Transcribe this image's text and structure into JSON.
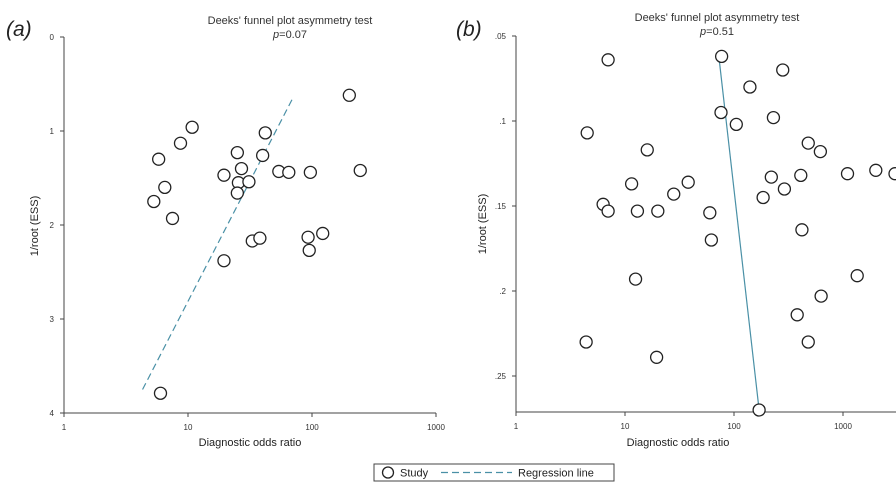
{
  "legend": {
    "study": "Study",
    "regression": "Regression line"
  },
  "chart_data": [
    {
      "type": "scatter",
      "panel": "(a)",
      "title": "Deeks' funnel plot asymmetry test",
      "p_label": "p",
      "p_value": "=0.07",
      "xlabel": "Diagnostic odds ratio",
      "ylabel": "1/root (ESS)",
      "x_scale": "log",
      "y_inverted": true,
      "xlim": [
        1,
        1000
      ],
      "ylim": [
        0,
        4
      ],
      "x_ticks": [
        "1",
        "10",
        "100",
        "1000"
      ],
      "y_ticks": [
        "0",
        "1",
        "2",
        "3",
        "4"
      ],
      "points": [
        {
          "x": 10.8,
          "y": 0.96
        },
        {
          "x": 8.7,
          "y": 1.13
        },
        {
          "x": 5.8,
          "y": 1.3
        },
        {
          "x": 6.5,
          "y": 1.6
        },
        {
          "x": 5.3,
          "y": 1.75
        },
        {
          "x": 7.5,
          "y": 1.93
        },
        {
          "x": 25,
          "y": 1.23
        },
        {
          "x": 19.5,
          "y": 1.47
        },
        {
          "x": 27,
          "y": 1.4
        },
        {
          "x": 25.5,
          "y": 1.55
        },
        {
          "x": 25,
          "y": 1.66
        },
        {
          "x": 31,
          "y": 1.54
        },
        {
          "x": 42,
          "y": 1.02
        },
        {
          "x": 40,
          "y": 1.26
        },
        {
          "x": 54,
          "y": 1.43
        },
        {
          "x": 65,
          "y": 1.44
        },
        {
          "x": 97,
          "y": 1.44
        },
        {
          "x": 33,
          "y": 2.17
        },
        {
          "x": 38,
          "y": 2.14
        },
        {
          "x": 19.5,
          "y": 2.38
        },
        {
          "x": 93,
          "y": 2.13
        },
        {
          "x": 95,
          "y": 2.27
        },
        {
          "x": 122,
          "y": 2.09
        },
        {
          "x": 200,
          "y": 0.62
        },
        {
          "x": 245,
          "y": 1.42
        },
        {
          "x": 6.0,
          "y": 3.79
        }
      ],
      "regression": [
        {
          "x": 4.3,
          "y": 3.75
        },
        {
          "x": 70,
          "y": 0.65
        }
      ]
    },
    {
      "type": "scatter",
      "panel": "(b)",
      "title": "Deeks' funnel plot asymmetry test",
      "p_label": "p",
      "p_value": "=0.51",
      "xlabel": "Diagnostic odds ratio",
      "ylabel": "1/root (ESS)",
      "x_scale": "log",
      "y_inverted": true,
      "xlim": [
        1,
        3000
      ],
      "ylim": [
        0.05,
        0.27
      ],
      "x_ticks": [
        "1",
        "10",
        "100",
        "1000"
      ],
      "y_ticks": [
        ".05",
        ".1",
        ".15",
        ".2",
        ".25"
      ],
      "points": [
        {
          "x": 7.0,
          "y": 0.064
        },
        {
          "x": 4.5,
          "y": 0.107
        },
        {
          "x": 16,
          "y": 0.117
        },
        {
          "x": 6.3,
          "y": 0.149
        },
        {
          "x": 7.0,
          "y": 0.153
        },
        {
          "x": 11.5,
          "y": 0.137
        },
        {
          "x": 13,
          "y": 0.153
        },
        {
          "x": 20,
          "y": 0.153
        },
        {
          "x": 28,
          "y": 0.143
        },
        {
          "x": 38,
          "y": 0.136
        },
        {
          "x": 60,
          "y": 0.154
        },
        {
          "x": 62,
          "y": 0.17
        },
        {
          "x": 12.5,
          "y": 0.193
        },
        {
          "x": 4.4,
          "y": 0.23
        },
        {
          "x": 19.5,
          "y": 0.239
        },
        {
          "x": 77,
          "y": 0.062
        },
        {
          "x": 76,
          "y": 0.095
        },
        {
          "x": 105,
          "y": 0.102
        },
        {
          "x": 140,
          "y": 0.08
        },
        {
          "x": 280,
          "y": 0.07
        },
        {
          "x": 230,
          "y": 0.098
        },
        {
          "x": 220,
          "y": 0.133
        },
        {
          "x": 290,
          "y": 0.14
        },
        {
          "x": 185,
          "y": 0.145
        },
        {
          "x": 480,
          "y": 0.113
        },
        {
          "x": 620,
          "y": 0.118
        },
        {
          "x": 410,
          "y": 0.132
        },
        {
          "x": 420,
          "y": 0.164
        },
        {
          "x": 1100,
          "y": 0.131
        },
        {
          "x": 2000,
          "y": 0.129
        },
        {
          "x": 3000,
          "y": 0.131
        },
        {
          "x": 1350,
          "y": 0.191
        },
        {
          "x": 630,
          "y": 0.203
        },
        {
          "x": 380,
          "y": 0.214
        },
        {
          "x": 480,
          "y": 0.23
        },
        {
          "x": 170,
          "y": 0.27
        }
      ],
      "regression": [
        {
          "x": 72,
          "y": 0.06
        },
        {
          "x": 170,
          "y": 0.27
        }
      ]
    }
  ]
}
